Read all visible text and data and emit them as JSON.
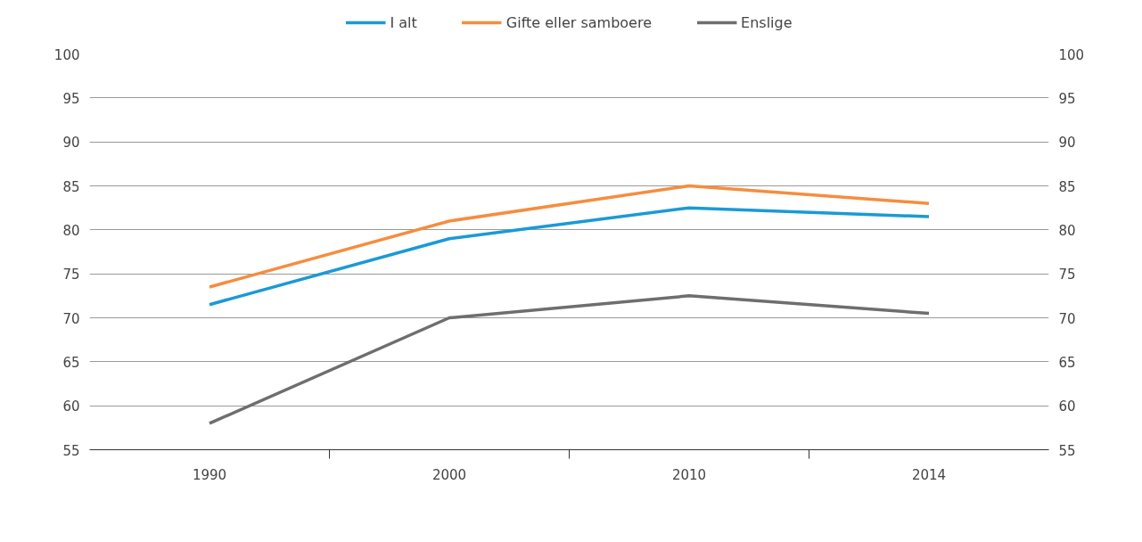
{
  "chart_data": {
    "type": "line",
    "categories": [
      "1990",
      "2000",
      "2010",
      "2014"
    ],
    "series": [
      {
        "name": "I alt",
        "color": "#1a9ad6",
        "values": [
          71.5,
          79,
          82.5,
          81.5
        ]
      },
      {
        "name": "Gifte eller samboere",
        "color": "#f58d3f",
        "values": [
          73.5,
          81,
          85,
          83
        ]
      },
      {
        "name": "Enslige",
        "color": "#6d6e70",
        "values": [
          58,
          70,
          72.5,
          70.5
        ]
      }
    ],
    "ylim": [
      55,
      100
    ],
    "yticks": [
      55,
      60,
      65,
      70,
      75,
      80,
      85,
      90,
      95,
      100
    ],
    "y2lim": [
      55,
      100
    ],
    "y2ticks": [
      55,
      60,
      65,
      70,
      75,
      80,
      85,
      90,
      95,
      100
    ],
    "grid": "y",
    "legend": "top",
    "line_style": "solid"
  }
}
